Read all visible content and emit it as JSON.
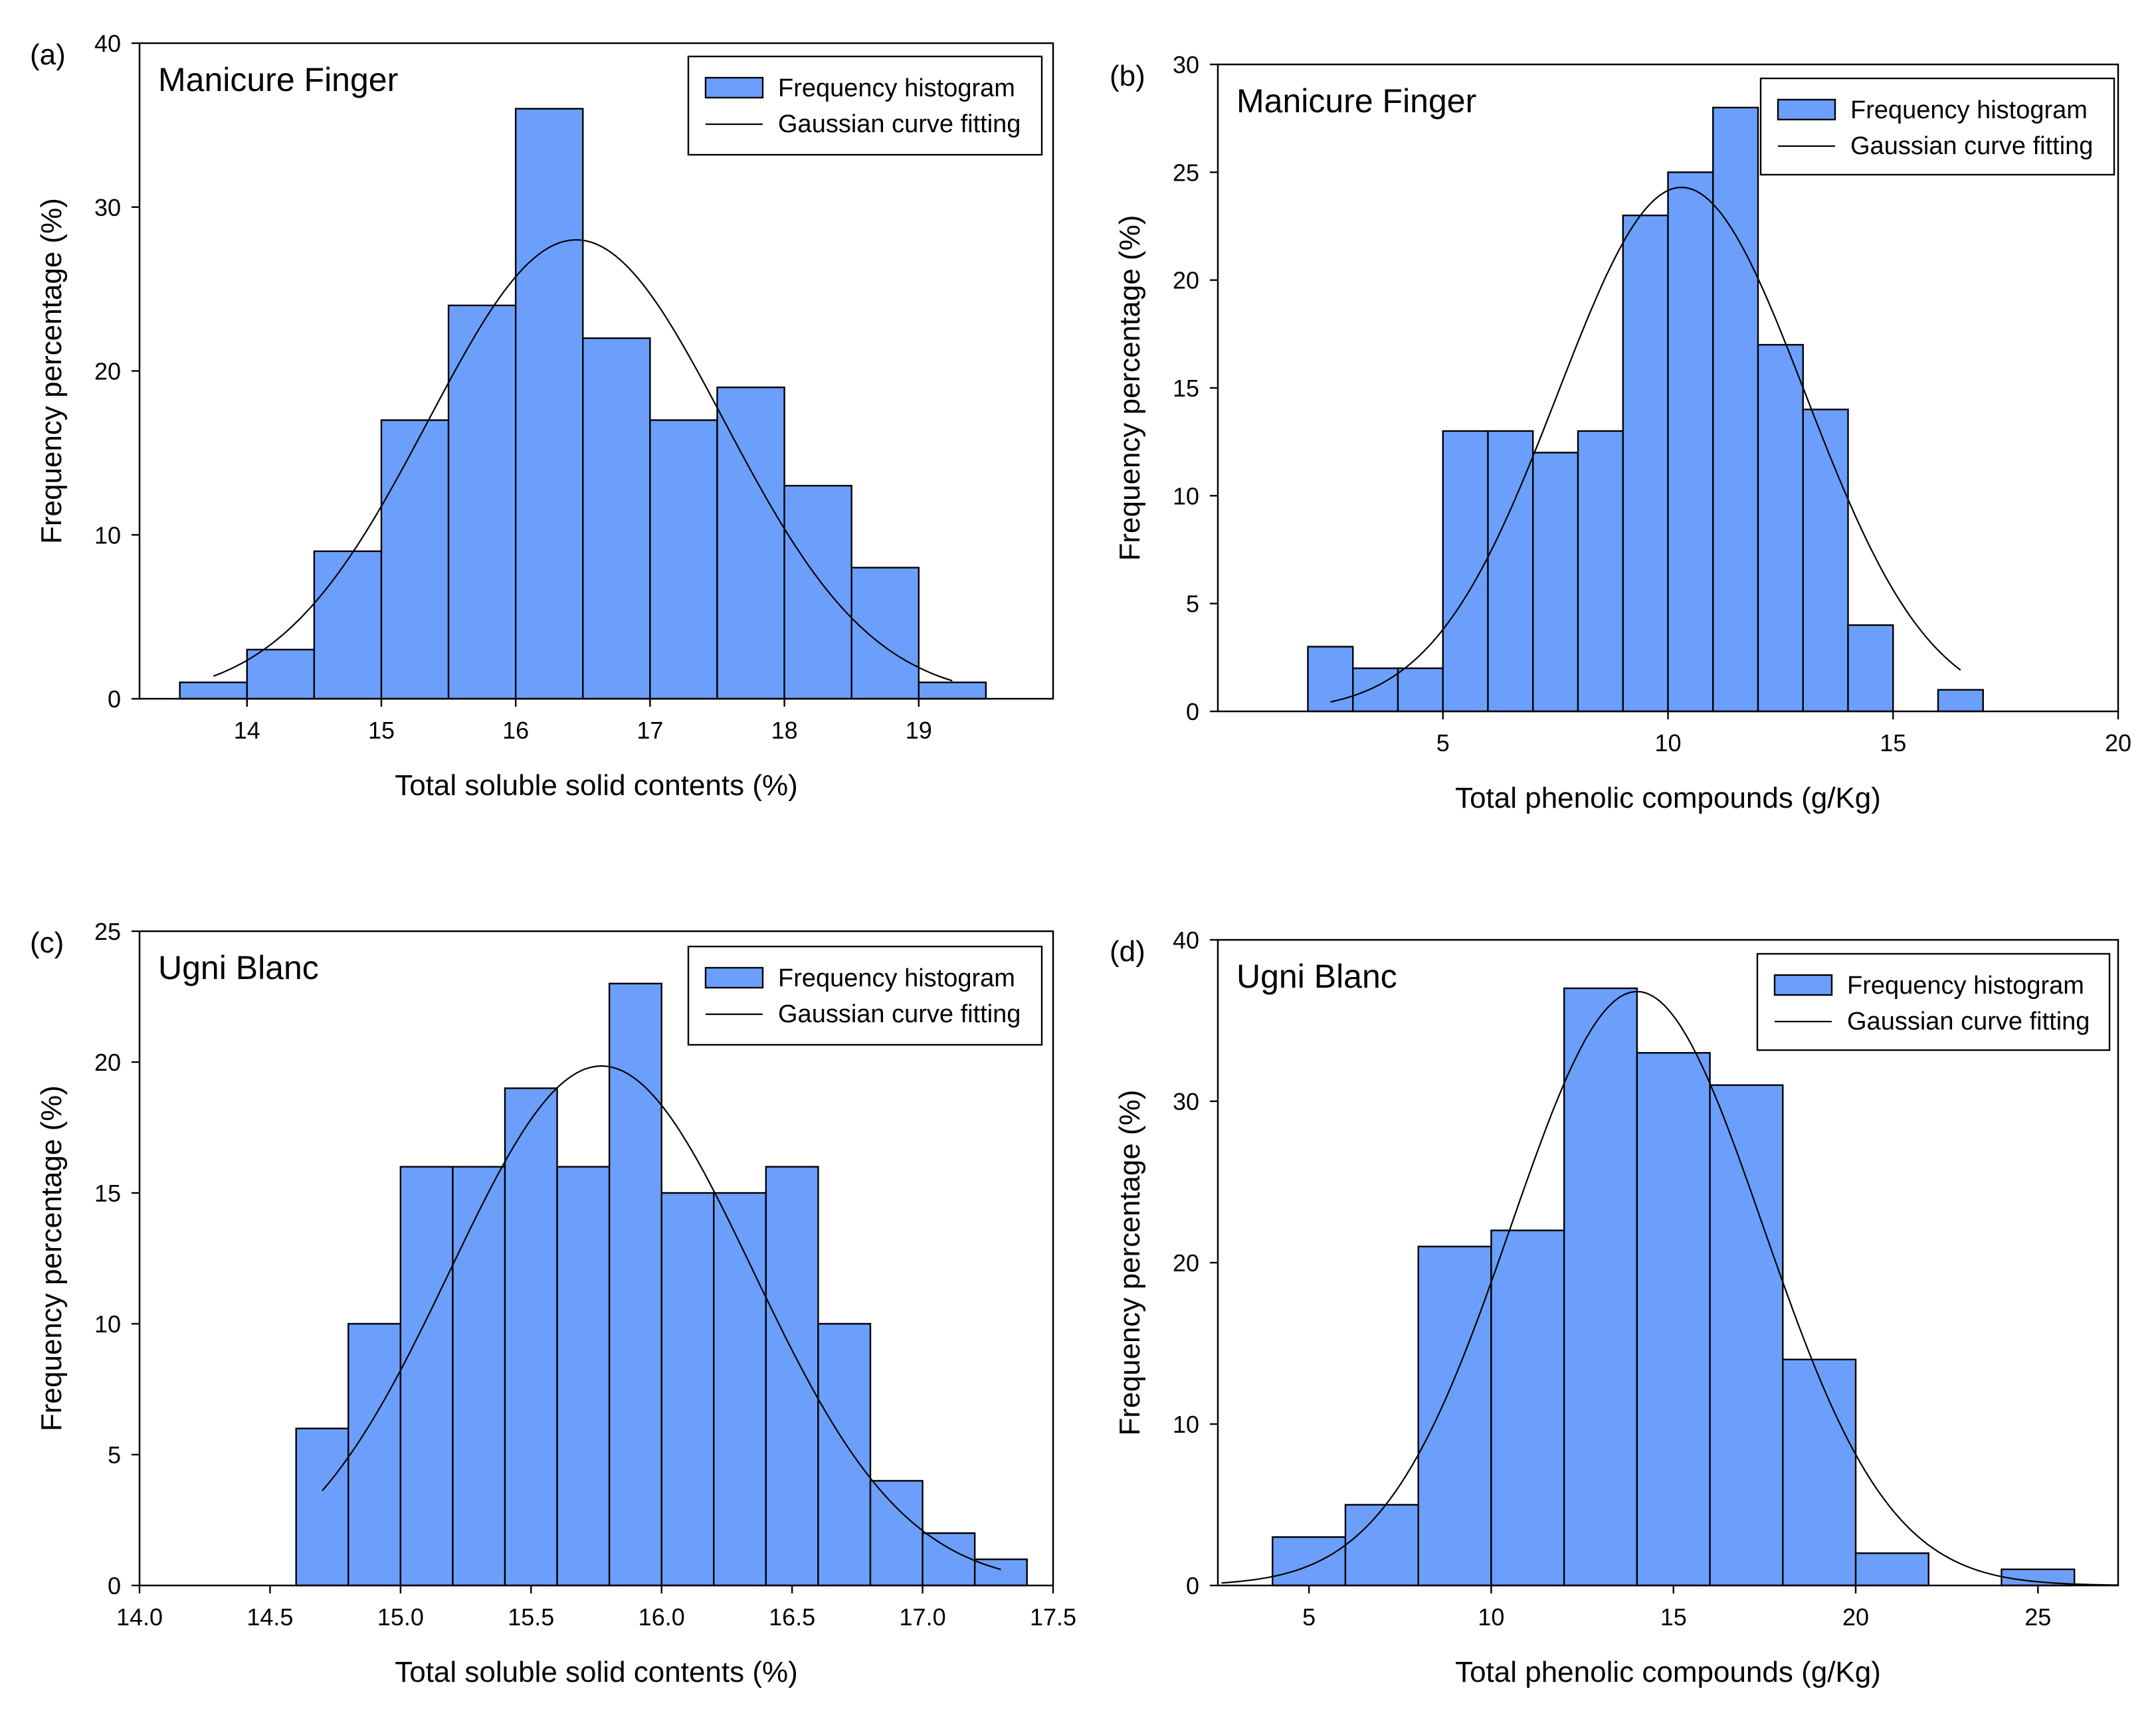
{
  "chart_data": [
    {
      "type": "bar",
      "panel_label": "(a)",
      "title": "Manicure Finger",
      "xlabel": "Total soluble solid contents (%)",
      "ylabel": "Frequency percentage (%)",
      "xlim": [
        13.2,
        20.0
      ],
      "ylim": [
        0,
        40
      ],
      "xticks": [
        14,
        15,
        16,
        17,
        18,
        19
      ],
      "xtick_labels": [
        "14",
        "15",
        "16",
        "17",
        "18",
        "19"
      ],
      "yticks": [
        0,
        10,
        20,
        30,
        40
      ],
      "ytick_labels": [
        "0",
        "10",
        "20",
        "30",
        "40"
      ],
      "bin_edges": [
        13.5,
        14.0,
        14.5,
        15.0,
        15.5,
        16.0,
        16.5,
        17.0,
        17.5,
        18.0,
        18.5,
        19.0,
        19.5
      ],
      "values": [
        1,
        3,
        9,
        17,
        24,
        36,
        22,
        17,
        19,
        13,
        8,
        1
      ],
      "gaussian": {
        "mean": 16.45,
        "sd": 1.1,
        "peak": 28.0,
        "x_range": [
          13.75,
          19.25
        ]
      },
      "legend": [
        "Frequency histogram",
        "Gaussian curve fitting"
      ],
      "legend_position": "top-right"
    },
    {
      "type": "bar",
      "panel_label": "(b)",
      "title": "Manicure Finger",
      "xlabel": "Total phenolic compounds (g/Kg)",
      "ylabel": "Frequency percentage (%)",
      "xlim": [
        0,
        20
      ],
      "ylim": [
        0,
        30
      ],
      "xticks": [
        5,
        10,
        15,
        20
      ],
      "xtick_labels": [
        "5",
        "10",
        "15",
        "20"
      ],
      "yticks": [
        0,
        5,
        10,
        15,
        20,
        25,
        30
      ],
      "ytick_labels": [
        "0",
        "5",
        "10",
        "15",
        "20",
        "25",
        "30"
      ],
      "bin_edges": [
        2,
        3,
        4,
        5,
        6,
        7,
        8,
        9,
        10,
        11,
        12,
        13,
        14,
        15,
        16,
        17
      ],
      "values": [
        3,
        2,
        2,
        13,
        13,
        12,
        13,
        23,
        25,
        28,
        17,
        14,
        4,
        0,
        1
      ],
      "gaussian": {
        "mean": 10.3,
        "sd": 2.75,
        "peak": 24.3,
        "x_range": [
          2.5,
          16.5
        ]
      },
      "legend": [
        "Frequency histogram",
        "Gaussian curve fitting"
      ],
      "legend_position": "top-right"
    },
    {
      "type": "bar",
      "panel_label": "(c)",
      "title": "Ugni Blanc",
      "xlabel": "Total soluble solid contents (%)",
      "ylabel": "Frequency percentage (%)",
      "xlim": [
        14.0,
        17.5
      ],
      "ylim": [
        0,
        25
      ],
      "xticks": [
        14.0,
        14.5,
        15.0,
        15.5,
        16.0,
        16.5,
        17.0,
        17.5
      ],
      "xtick_labels": [
        "14.0",
        "14.5",
        "15.0",
        "15.5",
        "16.0",
        "16.5",
        "17.0",
        "17.5"
      ],
      "yticks": [
        0,
        5,
        10,
        15,
        20,
        25
      ],
      "ytick_labels": [
        "0",
        "5",
        "10",
        "15",
        "20",
        "25"
      ],
      "bin_edges": [
        14.6,
        14.8,
        15.0,
        15.2,
        15.4,
        15.6,
        15.8,
        16.0,
        16.2,
        16.4,
        16.6,
        16.8,
        17.0,
        17.2,
        17.4
      ],
      "values": [
        6,
        10,
        16,
        16,
        19,
        16,
        23,
        15,
        15,
        16,
        10,
        4,
        2,
        1
      ],
      "gaussian": {
        "mean": 15.77,
        "sd": 0.58,
        "peak": 19.85,
        "x_range": [
          14.7,
          17.3
        ]
      },
      "legend": [
        "Frequency histogram",
        "Gaussian curve fitting"
      ],
      "legend_position": "top-right"
    },
    {
      "type": "bar",
      "panel_label": "(d)",
      "title": "Ugni Blanc",
      "xlabel": "Total phenolic compounds (g/Kg)",
      "ylabel": "Frequency percentage (%)",
      "xlim": [
        2.5,
        27.2
      ],
      "ylim": [
        0,
        40
      ],
      "xticks": [
        5,
        10,
        15,
        20,
        25
      ],
      "xtick_labels": [
        "5",
        "10",
        "15",
        "20",
        "25"
      ],
      "yticks": [
        0,
        10,
        20,
        30,
        40
      ],
      "ytick_labels": [
        "0",
        "10",
        "20",
        "30",
        "40"
      ],
      "bin_edges": [
        4,
        6,
        8,
        10,
        12,
        14,
        16,
        18,
        20,
        22,
        24,
        26
      ],
      "values": [
        3,
        5,
        21,
        22,
        37,
        33,
        31,
        14,
        2,
        0,
        1
      ],
      "gaussian": {
        "mean": 14.0,
        "sd": 3.45,
        "peak": 36.8,
        "x_range": [
          2.6,
          27.2
        ]
      },
      "legend": [
        "Frequency histogram",
        "Gaussian curve fitting"
      ],
      "legend_position": "top-right"
    }
  ]
}
